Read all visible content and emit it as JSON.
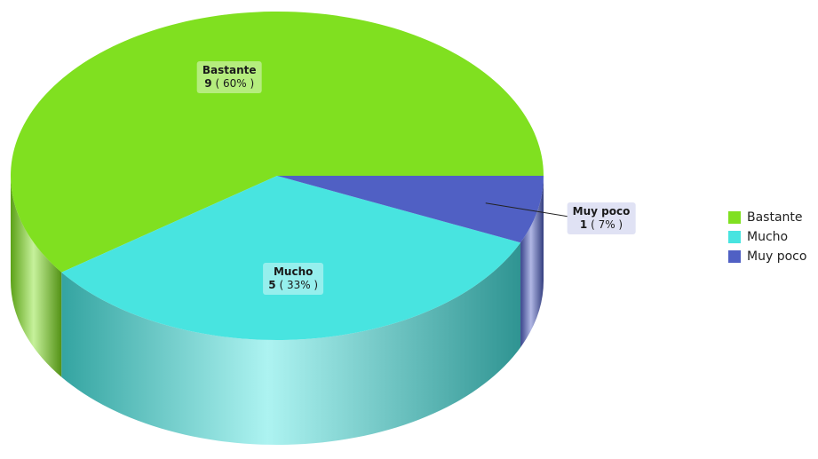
{
  "chart_data": {
    "type": "pie",
    "title": "",
    "categories": [
      "Bastante",
      "Mucho",
      "Muy poco"
    ],
    "values": [
      9,
      5,
      1
    ],
    "percent_labels": [
      "60%",
      "33%",
      "7%"
    ],
    "colors": [
      "#80e020",
      "#48e4e0",
      "#5060c4"
    ],
    "legend_position": "right",
    "three_d": true
  }
}
